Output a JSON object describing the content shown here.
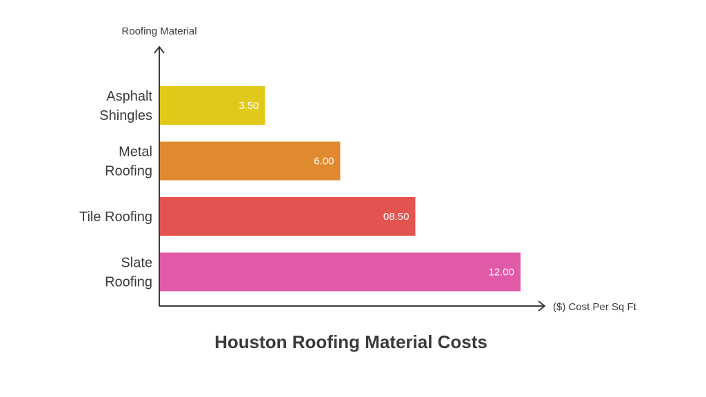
{
  "chart_data": {
    "type": "bar",
    "orientation": "horizontal",
    "title": "Houston Roofing Material Costs",
    "xlabel": "($) Cost Per Sq Ft",
    "ylabel": "Roofing Material",
    "categories": [
      [
        "Asphalt",
        "Shingles"
      ],
      [
        "Metal",
        "Roofing"
      ],
      [
        "Tile Roofing"
      ],
      [
        "Slate",
        "Roofing"
      ]
    ],
    "values": [
      3.5,
      6.0,
      8.5,
      12.0
    ],
    "value_labels": [
      "3.50",
      "6.00",
      "08.50",
      "12.00"
    ],
    "colors": [
      "#e1c91a",
      "#e08a30",
      "#e3534f",
      "#e05aa8"
    ],
    "grid": false,
    "legend": "none"
  }
}
